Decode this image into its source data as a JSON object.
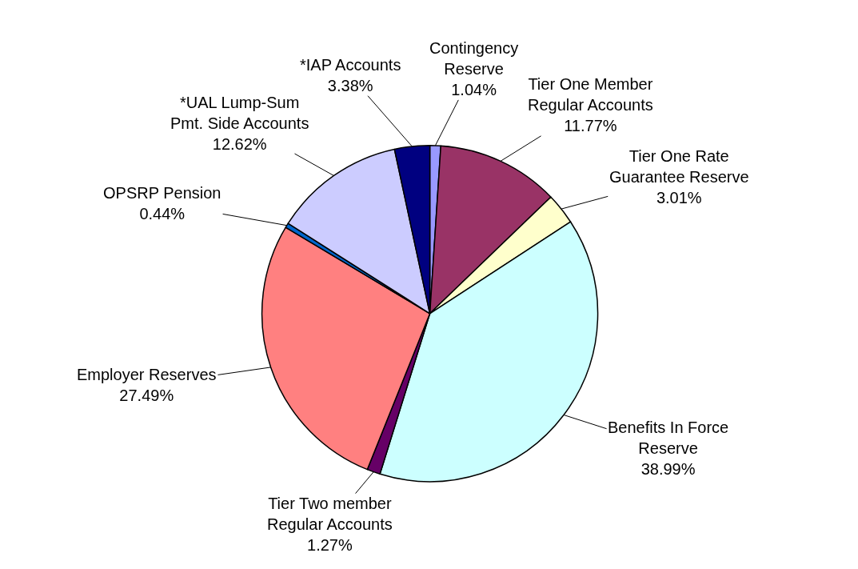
{
  "chart_data": {
    "type": "pie",
    "categories": [
      "Contingency\nReserve",
      "Tier One Member\nRegular Accounts",
      "Tier One Rate\nGuarantee Reserve",
      "Benefits In Force\nReserve",
      "Tier Two member\nRegular Accounts",
      "Employer Reserves",
      "OPSRP Pension",
      "*UAL Lump-Sum\nPmt. Side Accounts",
      "*IAP Accounts"
    ],
    "values": [
      1.04,
      11.77,
      3.01,
      38.99,
      1.27,
      27.49,
      0.44,
      12.62,
      3.38
    ],
    "value_labels": [
      "1.04%",
      "11.77%",
      "3.01%",
      "38.99%",
      "1.27%",
      "27.49%",
      "0.44%",
      "12.62%",
      "3.38%"
    ],
    "colors": [
      "#9999ff",
      "#993366",
      "#ffffcc",
      "#ccffff",
      "#660066",
      "#ff8080",
      "#0066cc",
      "#ccccff",
      "#000080"
    ],
    "legend": false
  }
}
